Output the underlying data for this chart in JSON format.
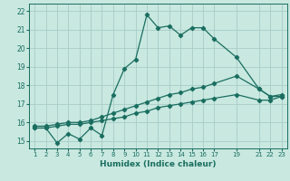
{
  "xlabel": "Humidex (Indice chaleur)",
  "bg_color": "#c8e8e0",
  "grid_color": "#a8ccc8",
  "line_color": "#1a6e60",
  "ylim": [
    14.6,
    22.4
  ],
  "xlim": [
    0.5,
    23.5
  ],
  "yticks": [
    15,
    16,
    17,
    18,
    19,
    20,
    21,
    22
  ],
  "xtick_positions": [
    1,
    2,
    3,
    4,
    5,
    6,
    7,
    8,
    9,
    10,
    11,
    12,
    13,
    14,
    15,
    16,
    17,
    19,
    21,
    22,
    23
  ],
  "xtick_labels": [
    "1",
    "2",
    "3",
    "4",
    "5",
    "6",
    "7",
    "8",
    "9",
    "10",
    "11",
    "12",
    "13",
    "14",
    "15",
    "16",
    "17",
    "19",
    "21",
    "22",
    "23"
  ],
  "line1_x": [
    1,
    2,
    3,
    4,
    5,
    6,
    7,
    8,
    9,
    10,
    11,
    12,
    13,
    14,
    15,
    16,
    17,
    19,
    21,
    22,
    23
  ],
  "line1_y": [
    15.7,
    15.7,
    14.9,
    15.4,
    15.1,
    15.7,
    15.3,
    17.5,
    18.9,
    19.4,
    21.8,
    21.1,
    21.2,
    20.7,
    21.1,
    21.1,
    20.5,
    19.5,
    17.8,
    17.4,
    17.5
  ],
  "line2_x": [
    1,
    2,
    3,
    4,
    5,
    6,
    7,
    8,
    9,
    10,
    11,
    12,
    13,
    14,
    15,
    16,
    17,
    19,
    21,
    22,
    23
  ],
  "line2_y": [
    15.8,
    15.8,
    15.9,
    16.0,
    16.0,
    16.1,
    16.3,
    16.5,
    16.7,
    16.9,
    17.1,
    17.3,
    17.5,
    17.6,
    17.8,
    17.9,
    18.1,
    18.5,
    17.8,
    17.4,
    17.4
  ],
  "line3_x": [
    1,
    2,
    3,
    4,
    5,
    6,
    7,
    8,
    9,
    10,
    11,
    12,
    13,
    14,
    15,
    16,
    17,
    19,
    21,
    22,
    23
  ],
  "line3_y": [
    15.7,
    15.7,
    15.8,
    15.9,
    15.9,
    16.0,
    16.1,
    16.2,
    16.3,
    16.5,
    16.6,
    16.8,
    16.9,
    17.0,
    17.1,
    17.2,
    17.3,
    17.5,
    17.2,
    17.2,
    17.4
  ]
}
